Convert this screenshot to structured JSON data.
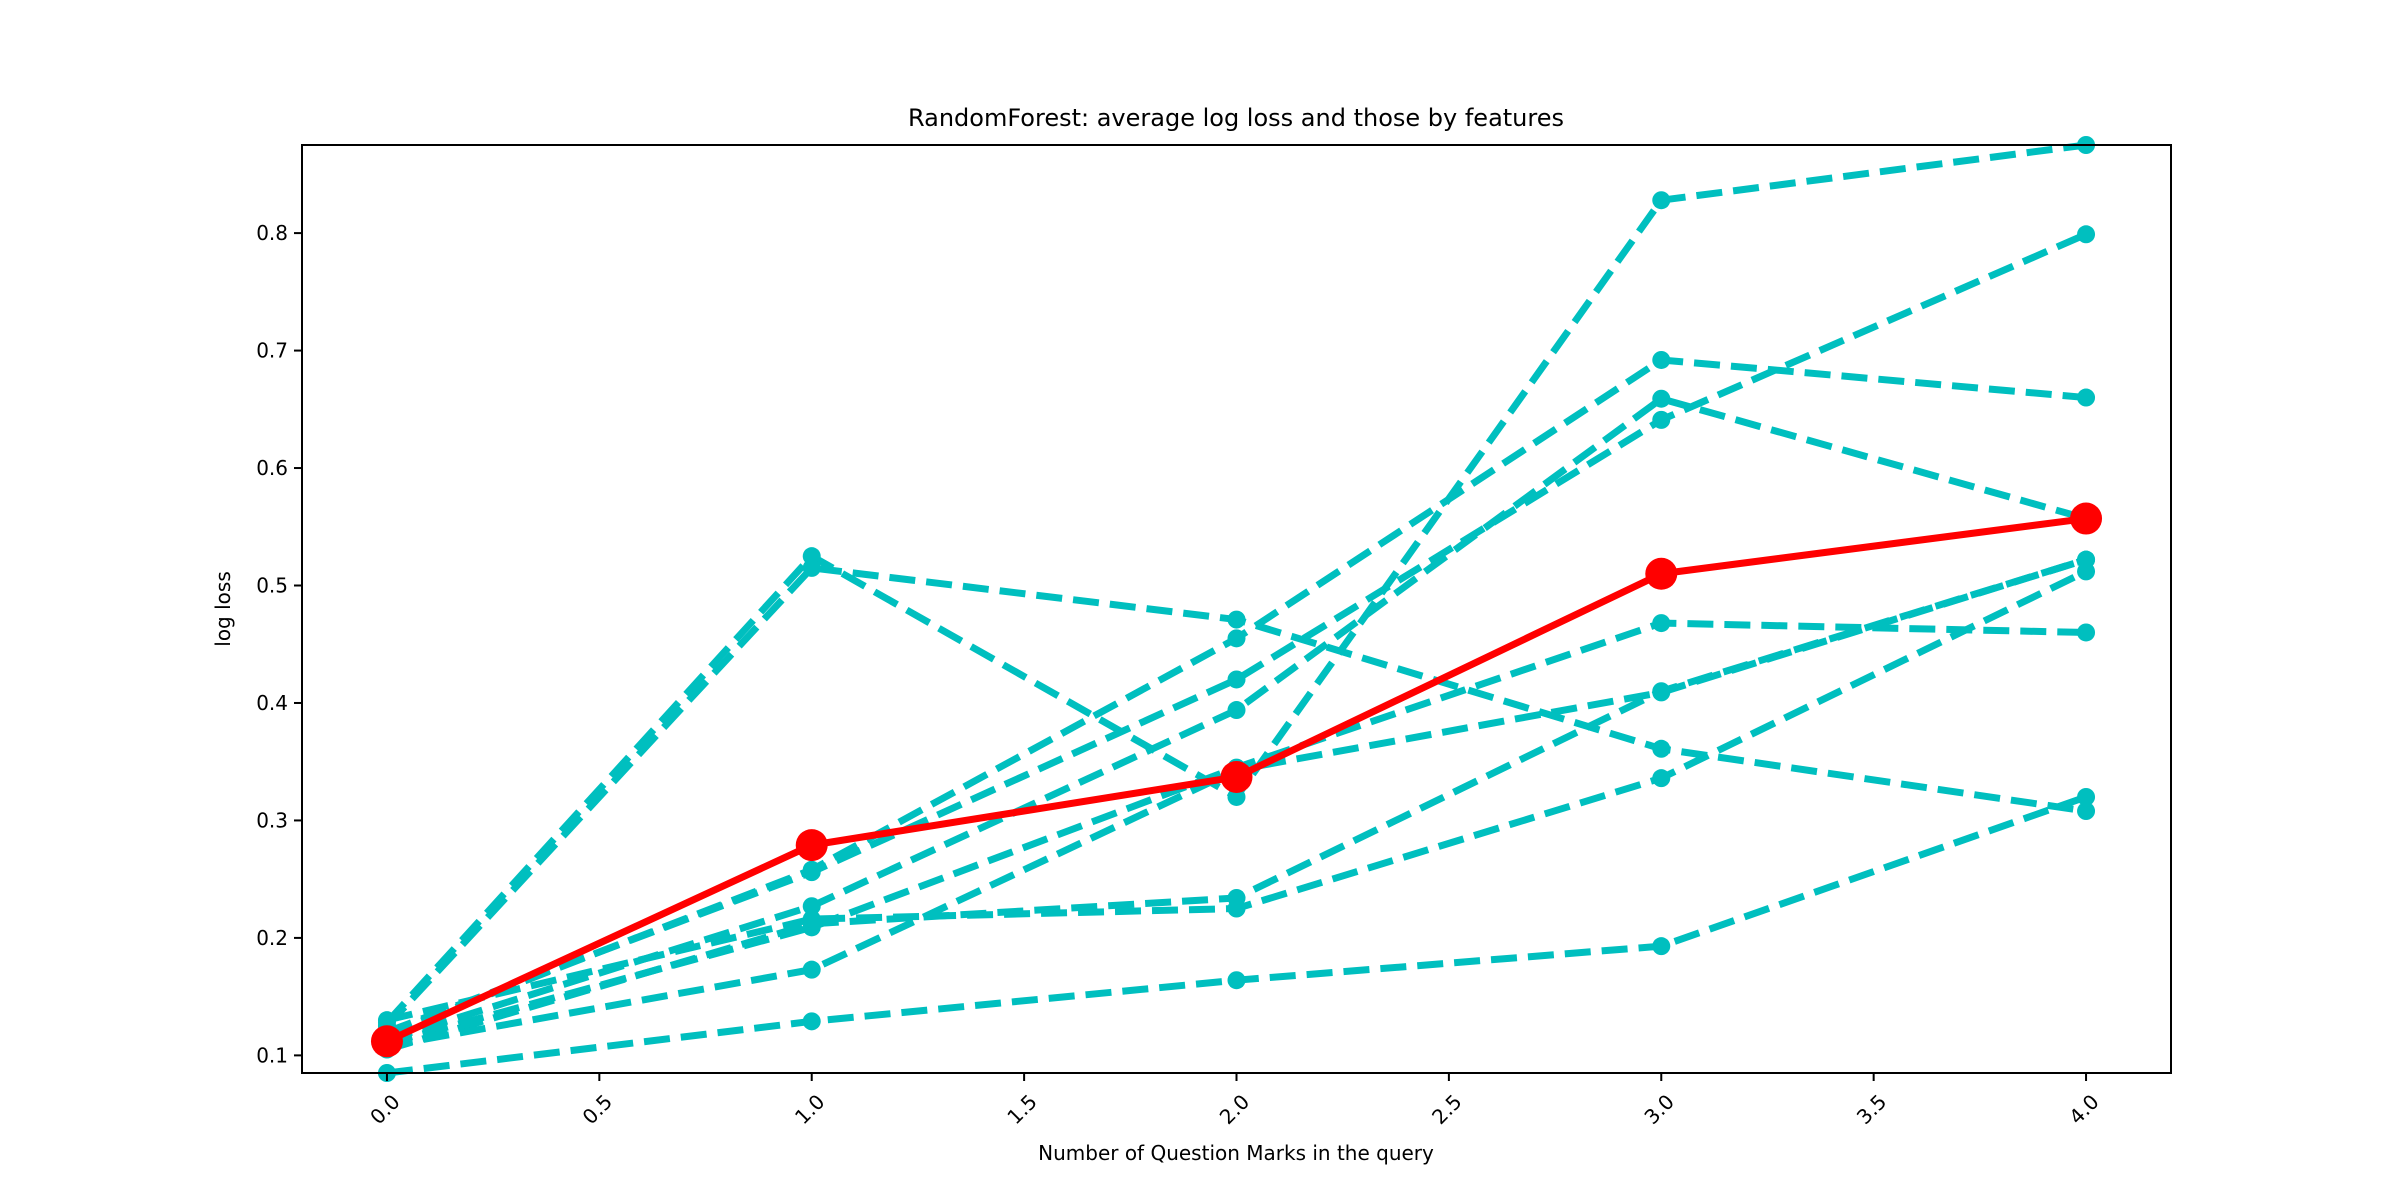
{
  "chart_data": {
    "type": "line",
    "title": "RandomForest: average log loss and those by features",
    "xlabel": "Number of Question Marks in the query",
    "ylabel": "log loss",
    "x": [
      0,
      1,
      2,
      3,
      4
    ],
    "xlim": [
      -0.2,
      4.2
    ],
    "ylim": [
      0.085,
      0.875
    ],
    "xticks": [
      0.0,
      0.5,
      1.0,
      1.5,
      2.0,
      2.5,
      3.0,
      3.5,
      4.0
    ],
    "xtick_labels": [
      "0.0",
      "0.5",
      "1.0",
      "1.5",
      "2.0",
      "2.5",
      "3.0",
      "3.5",
      "4.0"
    ],
    "yticks": [
      0.1,
      0.2,
      0.3,
      0.4,
      0.5,
      0.6,
      0.7,
      0.8
    ],
    "ytick_labels": [
      "0.1",
      "0.2",
      "0.3",
      "0.4",
      "0.5",
      "0.6",
      "0.7",
      "0.8"
    ],
    "grid": false,
    "average_color": "#ff0000",
    "feature_color": "#00bfbf",
    "average": {
      "values": [
        0.112,
        0.279,
        0.337,
        0.51,
        0.557
      ]
    },
    "features": [
      {
        "values": [
          0.128,
          0.525,
          0.32,
          0.828,
          0.875
        ]
      },
      {
        "values": [
          0.125,
          0.515,
          0.471,
          0.361,
          0.308
        ]
      },
      {
        "values": [
          0.118,
          0.258,
          0.455,
          0.692,
          0.66
        ]
      },
      {
        "values": [
          0.12,
          0.256,
          0.42,
          0.641,
          0.799
        ]
      },
      {
        "values": [
          0.113,
          0.227,
          0.394,
          0.659,
          0.557
        ]
      },
      {
        "values": [
          0.11,
          0.209,
          0.345,
          0.468,
          0.46
        ]
      },
      {
        "values": [
          0.105,
          0.212,
          0.234,
          0.41,
          0.522
        ]
      },
      {
        "values": [
          0.13,
          0.216,
          0.225,
          0.336,
          0.512
        ]
      },
      {
        "values": [
          0.108,
          0.173,
          0.343,
          0.409,
          0.522
        ]
      },
      {
        "values": [
          0.085,
          0.129,
          0.164,
          0.193,
          0.32
        ]
      }
    ]
  }
}
